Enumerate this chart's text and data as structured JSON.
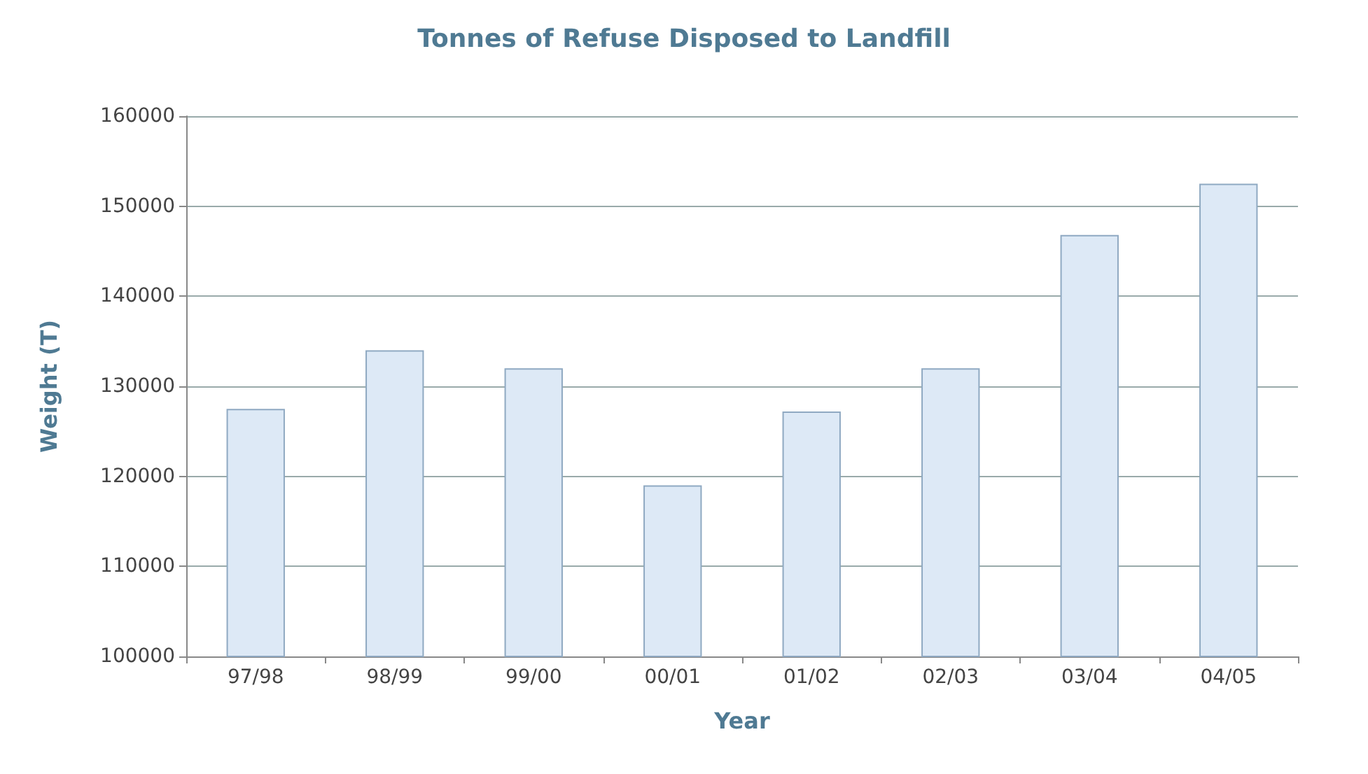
{
  "chart_data": {
    "type": "bar",
    "title": "Tonnes of Refuse Disposed to Landfill",
    "xlabel": "Year",
    "ylabel": "Weight (T)",
    "categories": [
      "97/98",
      "98/99",
      "99/00",
      "00/01",
      "01/02",
      "02/03",
      "03/04",
      "04/05"
    ],
    "values": [
      127500,
      134000,
      132000,
      119000,
      127200,
      132000,
      146800,
      152500
    ],
    "color": "#dde9f6",
    "ylim": [
      100000,
      160000
    ],
    "yticks": [
      100000,
      110000,
      120000,
      130000,
      140000,
      150000,
      160000
    ],
    "grid": "y"
  }
}
